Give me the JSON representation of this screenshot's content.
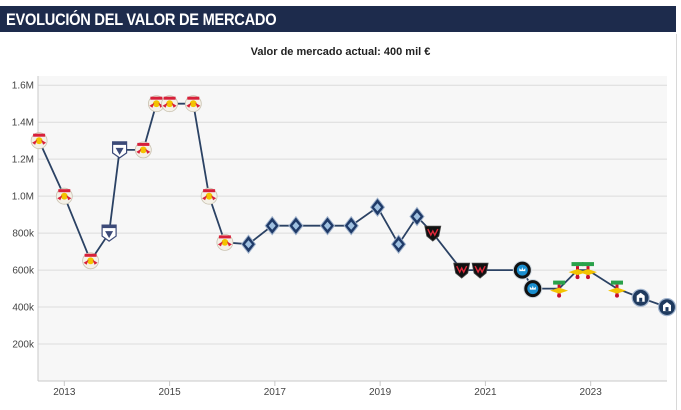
{
  "header": {
    "title": "EVOLUCIÓN DEL VALOR DE MERCADO"
  },
  "subtitle": "Valor de mercado actual: 400 mil €",
  "colors": {
    "header_bg": "#1d2b4c",
    "line": "#2b4264",
    "plot_bg": "#f7f7f7",
    "grid": "#dcdcdc",
    "axis": "#c8c8c8"
  },
  "chart_data": {
    "type": "line",
    "title": "Valor de mercado actual: 400 mil €",
    "xlabel": "",
    "ylabel": "",
    "xlim": [
      2012.5,
      2024.45
    ],
    "ylim": [
      0,
      1650000
    ],
    "x_ticks": [
      2013,
      2015,
      2017,
      2019,
      2021,
      2023
    ],
    "x_tick_labels": [
      "2013",
      "2015",
      "2017",
      "2019",
      "2021",
      "2023"
    ],
    "y_ticks": [
      200000,
      400000,
      600000,
      800000,
      1000000,
      1200000,
      1400000,
      1600000
    ],
    "y_tick_labels": [
      "200k",
      "400k",
      "600k",
      "800k",
      "1.0M",
      "1.2M",
      "1.4M",
      "1.6M"
    ],
    "grid": true,
    "series": [
      {
        "name": "Valor de mercado",
        "points": [
          {
            "x": 2012.52,
            "y": 1300000,
            "club": "redbulls"
          },
          {
            "x": 2013.0,
            "y": 1000000,
            "club": "redbulls"
          },
          {
            "x": 2013.5,
            "y": 650000,
            "club": "redbulls"
          },
          {
            "x": 2013.85,
            "y": 800000,
            "club": "eagle"
          },
          {
            "x": 2014.05,
            "y": 1250000,
            "club": "eagle"
          },
          {
            "x": 2014.5,
            "y": 1250000,
            "club": "redbulls"
          },
          {
            "x": 2014.75,
            "y": 1500000,
            "club": "redbulls"
          },
          {
            "x": 2015.0,
            "y": 1500000,
            "club": "redbulls"
          },
          {
            "x": 2015.45,
            "y": 1500000,
            "club": "redbulls"
          },
          {
            "x": 2015.75,
            "y": 1000000,
            "club": "redbulls"
          },
          {
            "x": 2016.05,
            "y": 750000,
            "club": "redbulls"
          },
          {
            "x": 2016.5,
            "y": 740000,
            "club": "whitecaps"
          },
          {
            "x": 2016.95,
            "y": 840000,
            "club": "whitecaps"
          },
          {
            "x": 2017.4,
            "y": 840000,
            "club": "whitecaps"
          },
          {
            "x": 2018.0,
            "y": 840000,
            "club": "whitecaps"
          },
          {
            "x": 2018.45,
            "y": 840000,
            "club": "whitecaps"
          },
          {
            "x": 2018.95,
            "y": 940000,
            "club": "whitecaps"
          },
          {
            "x": 2019.35,
            "y": 740000,
            "club": "whitecaps"
          },
          {
            "x": 2019.7,
            "y": 890000,
            "club": "whitecaps"
          },
          {
            "x": 2020.0,
            "y": 800000,
            "club": "dcunited"
          },
          {
            "x": 2020.55,
            "y": 600000,
            "club": "dcunited"
          },
          {
            "x": 2020.9,
            "y": 600000,
            "club": "dcunited"
          },
          {
            "x": 2021.7,
            "y": 600000,
            "club": "charlotte"
          },
          {
            "x": 2021.9,
            "y": 500000,
            "club": "charlotte"
          },
          {
            "x": 2022.4,
            "y": 500000,
            "club": "tolima"
          },
          {
            "x": 2022.75,
            "y": 600000,
            "club": "tolima"
          },
          {
            "x": 2022.95,
            "y": 600000,
            "club": "tolima"
          },
          {
            "x": 2023.5,
            "y": 500000,
            "club": "tolima"
          },
          {
            "x": 2023.95,
            "y": 450000,
            "club": "tampa"
          },
          {
            "x": 2024.45,
            "y": 400000,
            "club": "tampa"
          }
        ]
      }
    ]
  }
}
